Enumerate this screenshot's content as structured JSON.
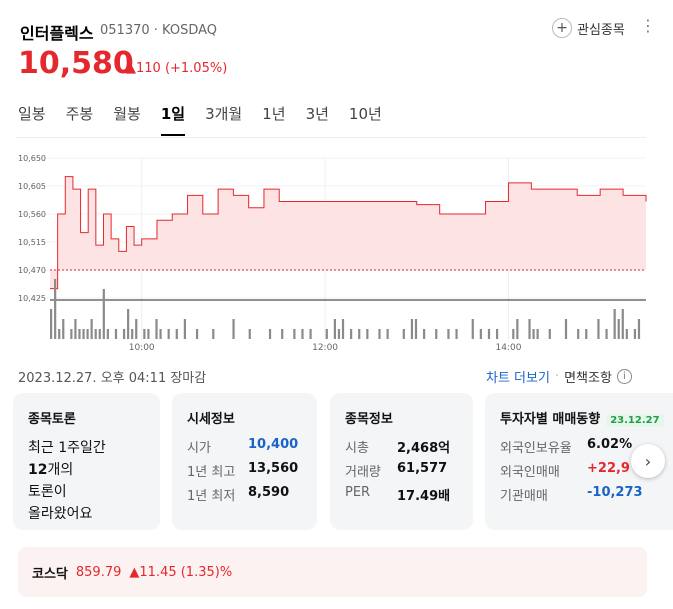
{
  "header": {
    "company_name": "인터플렉스",
    "code_market": "051370 · KOSDAQ",
    "favorite_label": "관심종목",
    "price": "10,580",
    "change": "▲110 (+1.05%)"
  },
  "tabs": [
    "일봉",
    "주봉",
    "월봉",
    "1일",
    "3개월",
    "1년",
    "3년",
    "10년"
  ],
  "active_tab": "1일",
  "chart_data": {
    "type": "area",
    "y_ticks": [
      "10,650",
      "10,605",
      "10,560",
      "10,515",
      "10,470",
      "10,425"
    ],
    "ylim": [
      10425,
      10650
    ],
    "x_ticks": [
      "10:00",
      "12:00",
      "14:00"
    ],
    "baseline": 10470,
    "price_series": [
      [
        "09:00",
        10440
      ],
      [
        "09:05",
        10560
      ],
      [
        "09:10",
        10620
      ],
      [
        "09:15",
        10600
      ],
      [
        "09:20",
        10530
      ],
      [
        "09:25",
        10600
      ],
      [
        "09:30",
        10510
      ],
      [
        "09:35",
        10560
      ],
      [
        "09:40",
        10520
      ],
      [
        "09:45",
        10500
      ],
      [
        "09:50",
        10540
      ],
      [
        "09:55",
        10510
      ],
      [
        "10:00",
        10520
      ],
      [
        "10:10",
        10550
      ],
      [
        "10:20",
        10560
      ],
      [
        "10:30",
        10590
      ],
      [
        "10:40",
        10560
      ],
      [
        "10:50",
        10600
      ],
      [
        "11:00",
        10590
      ],
      [
        "11:10",
        10570
      ],
      [
        "11:20",
        10600
      ],
      [
        "11:30",
        10580
      ],
      [
        "12:00",
        10580
      ],
      [
        "12:30",
        10580
      ],
      [
        "13:00",
        10575
      ],
      [
        "13:15",
        10560
      ],
      [
        "13:30",
        10560
      ],
      [
        "13:45",
        10580
      ],
      [
        "14:00",
        10610
      ],
      [
        "14:15",
        10600
      ],
      [
        "14:30",
        10600
      ],
      [
        "14:45",
        10590
      ],
      [
        "15:00",
        10600
      ],
      [
        "15:15",
        10590
      ],
      [
        "15:30",
        10580
      ]
    ],
    "volume": [
      3,
      6,
      1,
      2,
      0,
      1,
      2,
      1,
      1,
      1,
      2,
      1,
      1,
      5,
      1,
      0,
      1,
      0,
      1,
      3,
      1,
      2,
      0,
      1,
      1,
      0,
      2,
      1,
      0,
      1,
      0,
      1,
      0,
      2,
      0,
      0,
      1,
      0,
      0,
      0,
      1,
      0,
      0,
      0,
      0,
      2,
      0,
      0,
      0,
      1,
      0,
      0,
      0,
      0,
      1,
      0,
      0,
      1,
      0,
      0,
      1,
      0,
      1,
      0,
      1,
      0,
      0,
      0,
      1,
      0,
      2,
      1,
      2,
      0,
      1,
      0,
      1,
      0,
      1,
      0,
      0,
      1,
      0,
      1,
      0,
      0,
      0,
      1,
      0,
      2,
      2,
      0,
      1,
      0,
      0,
      1,
      0,
      0,
      1,
      0,
      1,
      0,
      0,
      0,
      2,
      0,
      1,
      0,
      1,
      0,
      1,
      0,
      0,
      0,
      1,
      2,
      0,
      0,
      2,
      1,
      1,
      0,
      0,
      1,
      0,
      0,
      0,
      2,
      0,
      0,
      1,
      0,
      1,
      0,
      0,
      2,
      0,
      1,
      0,
      3,
      2,
      3,
      1,
      0,
      1,
      2,
      0
    ]
  },
  "timestamp": "2023.12.27. 오후 04:11 장마감",
  "links": {
    "more": "차트 더보기",
    "disclaimer": "면책조항",
    "info_icon": "i"
  },
  "cards": {
    "board": {
      "title": "종목토론",
      "line1": "최근 1주일간",
      "count": "12",
      "line2_suffix": "개의",
      "line3": "토론이",
      "line4": "올라왔어요"
    },
    "quote": {
      "title": "시세정보",
      "rows": [
        {
          "label": "시가",
          "value": "10,400"
        },
        {
          "label": "1년 최고",
          "value": "13,560"
        },
        {
          "label": "1년 최저",
          "value": "8,590"
        }
      ]
    },
    "info": {
      "title": "종목정보",
      "rows": [
        {
          "label": "시총",
          "value": "2,468억"
        },
        {
          "label": "거래량",
          "value": "61,577"
        },
        {
          "label": "PER",
          "value": "17.49배"
        }
      ]
    },
    "investor": {
      "title": "투자자별 매매동향",
      "badge": "23.12.27",
      "rows": [
        {
          "label": "외국인보유율",
          "value": "6.02%"
        },
        {
          "label": "외국인매매",
          "value": "+22,9"
        },
        {
          "label": "기관매매",
          "value": "-10,273"
        }
      ]
    }
  },
  "index": {
    "name": "코스닥",
    "value": "859.79",
    "change": "▲11.45 (1.35)%"
  },
  "colors": {
    "up": "#e5282d",
    "down": "#1a63c9",
    "chart_fill": "#fde3e3",
    "volume": "#888888"
  }
}
